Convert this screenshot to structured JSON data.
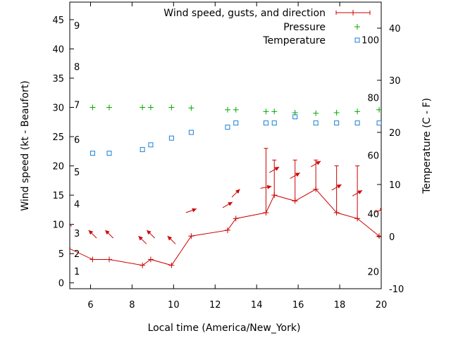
{
  "chart_data": {
    "type": "line",
    "xlabel": "Local time (America/New_York)",
    "ylabel_left": "Wind speed (kt - Beaufort)",
    "ylabel_right": "Temperature (C - F)",
    "xlim": [
      5,
      20
    ],
    "ylim_left": [
      -1,
      48
    ],
    "ylim_right": [
      -10,
      45
    ],
    "x_ticks": [
      6,
      8,
      10,
      12,
      14,
      16,
      18,
      20
    ],
    "y_left_ticks": [
      0,
      5,
      10,
      15,
      20,
      25,
      30,
      35,
      40,
      45
    ],
    "y_right_ticks": [
      -10,
      0,
      10,
      20,
      30,
      40
    ],
    "beaufort_labels": [
      {
        "value": 1,
        "label": "1"
      },
      {
        "value": 2,
        "label": "2"
      },
      {
        "value": 3,
        "label": "3"
      },
      {
        "value": 4,
        "label": "4"
      },
      {
        "value": 5,
        "label": "5"
      },
      {
        "value": 6,
        "label": "6"
      },
      {
        "value": 7,
        "label": "7"
      },
      {
        "value": 8,
        "label": "8"
      },
      {
        "value": 9,
        "label": "9"
      }
    ],
    "fahrenheit_labels": [
      {
        "celsius": -6.7,
        "label": "20"
      },
      {
        "celsius": 4.4,
        "label": "40"
      },
      {
        "celsius": 15.6,
        "label": "60"
      },
      {
        "celsius": 26.7,
        "label": "80"
      },
      {
        "celsius": 37.8,
        "label": "100"
      }
    ],
    "legend_position": "top-right",
    "series": [
      {
        "name": "Wind speed, gusts, and direction",
        "color": "#cc0000",
        "x": [
          4.9,
          6.1,
          6.9,
          8.5,
          8.9,
          9.9,
          10.85,
          12.6,
          13.0,
          14.45,
          14.85,
          15.85,
          16.85,
          17.85,
          18.85,
          19.9
        ],
        "values": [
          6,
          4,
          4,
          3,
          4,
          3,
          8,
          9,
          11,
          12,
          15,
          14,
          16,
          12,
          11,
          8
        ],
        "gusts": [
          null,
          null,
          null,
          null,
          null,
          null,
          null,
          null,
          null,
          23,
          21,
          21,
          21,
          20,
          20,
          null
        ],
        "directions_deg": [
          135,
          135,
          135,
          135,
          135,
          135,
          250,
          240,
          225,
          260,
          240,
          240,
          240,
          240,
          240,
          250
        ]
      },
      {
        "name": "Pressure",
        "color": "#00aa00",
        "x": [
          6.1,
          6.9,
          8.5,
          8.9,
          9.9,
          10.85,
          12.6,
          13.0,
          14.45,
          14.85,
          15.85,
          16.85,
          17.85,
          18.85,
          19.9
        ],
        "values": [
          30,
          30,
          30,
          30,
          30,
          29.9,
          29.6,
          29.6,
          29.3,
          29.3,
          29.1,
          29.0,
          29.1,
          29.3,
          29.6
        ]
      },
      {
        "name": "Temperature",
        "color": "#1a7fd4",
        "unit": "C",
        "x": [
          6.1,
          6.9,
          8.5,
          8.9,
          9.9,
          10.85,
          12.6,
          13.0,
          14.45,
          14.85,
          15.85,
          16.85,
          17.85,
          18.85,
          19.9
        ],
        "values": [
          16,
          16,
          16.7,
          17.6,
          18.9,
          20.0,
          21.0,
          21.8,
          21.8,
          21.8,
          23.0,
          21.8,
          21.8,
          21.8,
          21.8
        ]
      }
    ]
  }
}
